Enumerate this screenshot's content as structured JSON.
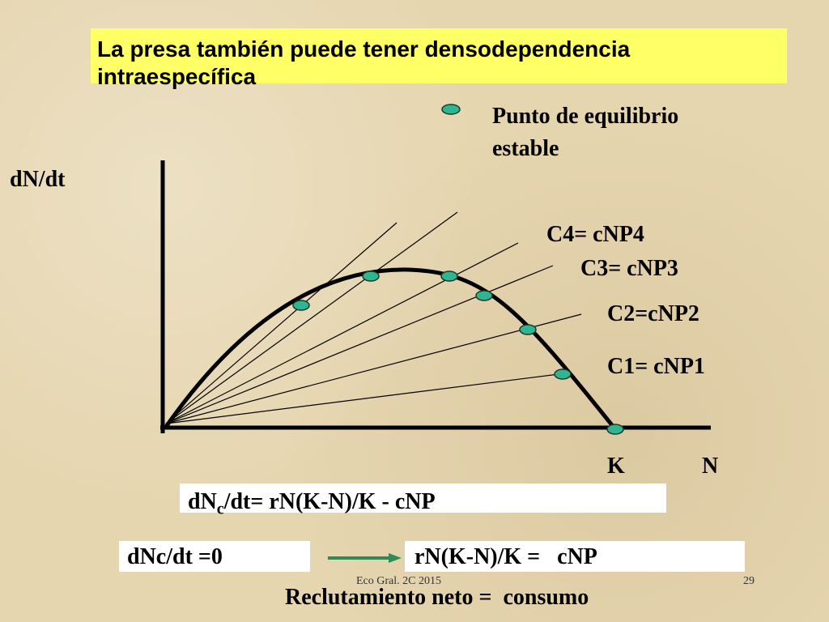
{
  "title": "La presa también puede tener densodependencia intraespecífica",
  "legend": {
    "lines": [
      "Punto de equilibrio",
      "estable"
    ]
  },
  "y_axis_label": "dN/dt",
  "x_axis_labels": {
    "k": "K",
    "n": "N"
  },
  "lines": [
    "C4= cNP4",
    "C3= cNP3",
    "C2=cNP2",
    "C1= cNP1"
  ],
  "equation": {
    "main": "dN",
    "sub": "c",
    "rest": "/dt= rN(K-N)/K - cNP"
  },
  "condition": {
    "left": "dNc/dt =0",
    "right": "rN(K-N)/K =   cNP"
  },
  "conclusion": "Reclutamiento neto =  consumo",
  "footer": {
    "text": "Eco Gral. 2C 2015",
    "page": "29"
  }
}
